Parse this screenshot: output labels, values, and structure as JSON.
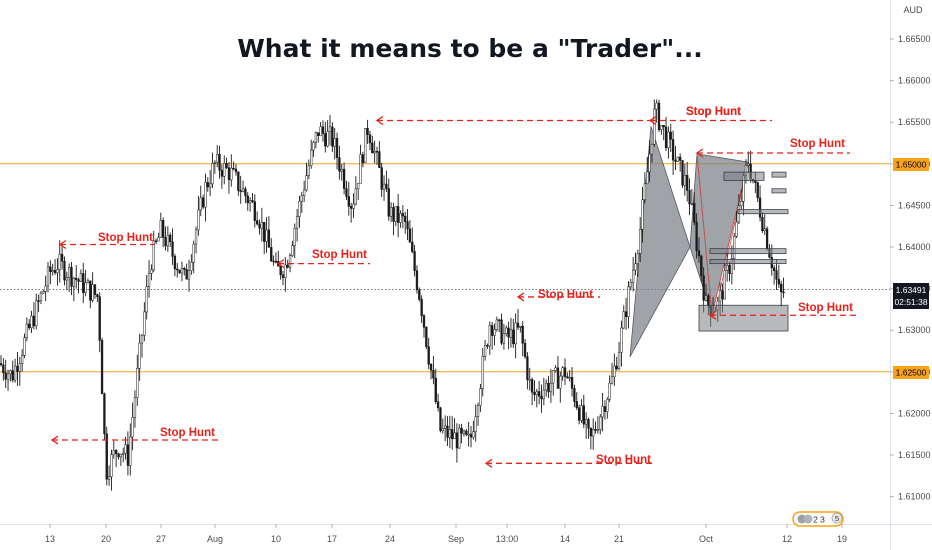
{
  "title": "What it means to be a \"Trader\"...",
  "currency": "AUD",
  "price_axis": {
    "ticks": [
      "1.66500",
      "1.66000",
      "1.65500",
      "1.65000",
      "1.64500",
      "1.64000",
      "1.63500",
      "1.63000",
      "1.62500",
      "1.62000",
      "1.61500",
      "1.61000"
    ],
    "values": [
      1.665,
      1.66,
      1.655,
      1.65,
      1.645,
      1.64,
      1.635,
      1.63,
      1.625,
      1.62,
      1.615,
      1.61
    ],
    "last_price": "1.63491",
    "countdown": "02:51:38",
    "level_high_label": "1.65000",
    "level_low_label": "1.62500"
  },
  "time_axis": {
    "labels": [
      "13",
      "20",
      "27",
      "Aug",
      "10",
      "17",
      "24",
      "Sep",
      "13:00",
      "14",
      "21",
      "Oct",
      "12",
      "19"
    ]
  },
  "stop_hunt_label": "Stop Hunt",
  "badge": {
    "left": "2 3",
    "right": "5"
  },
  "colors": {
    "candle": "#1a1a1a",
    "hunt": "#e8221b",
    "level": "#f7a21b",
    "pattern_fill": "#7b7f86",
    "pattern_stroke": "#555b63",
    "axis_text": "#4a4a4a"
  },
  "chart_data": {
    "type": "candlestick",
    "title": "What it means to be a \"Trader\"...",
    "y_unit": "AUD",
    "ylim": [
      1.606,
      1.668
    ],
    "horizontal_levels": [
      1.65,
      1.625
    ],
    "current_price": 1.63491,
    "path_anchors": [
      [
        "13",
        1.637
      ],
      [
        "20",
        1.613
      ],
      [
        "27",
        1.642
      ],
      [
        "Aug",
        1.65
      ],
      [
        "10",
        1.637
      ],
      [
        "17",
        1.653
      ],
      [
        "24",
        1.644
      ],
      [
        "Sep",
        1.617
      ],
      [
        "13:00",
        1.629
      ],
      [
        "14",
        1.625
      ],
      [
        "21",
        1.628
      ],
      [
        "Oct",
        1.633
      ],
      [
        "12",
        1.635
      ]
    ],
    "annotations": [
      {
        "text": "Stop Hunt",
        "price": 1.6403,
        "near": "13"
      },
      {
        "text": "Stop Hunt",
        "price": 1.638,
        "near": "10"
      },
      {
        "text": "Stop Hunt",
        "price": 1.6552,
        "near": "24"
      },
      {
        "text": "Stop Hunt",
        "price": 1.6168,
        "near": "20"
      },
      {
        "text": "Stop Hunt",
        "price": 1.634,
        "near": "13:00"
      },
      {
        "text": "Stop Hunt",
        "price": 1.614,
        "near": "14"
      },
      {
        "text": "Stop Hunt",
        "price": 1.6552,
        "near": "21"
      },
      {
        "text": "Stop Hunt",
        "price": 1.6513,
        "near": "Oct"
      },
      {
        "text": "Stop Hunt",
        "price": 1.6318,
        "near": "12"
      }
    ],
    "grid": false
  }
}
